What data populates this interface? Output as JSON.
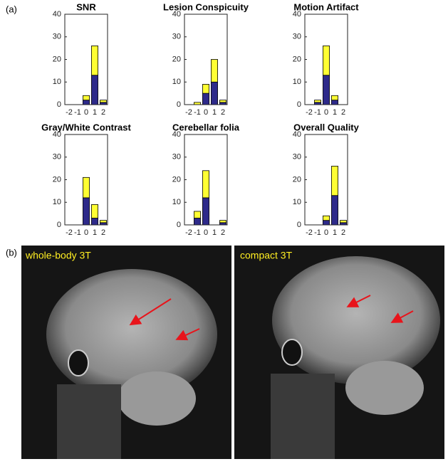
{
  "panel_labels": [
    "(a)",
    "(b)"
  ],
  "chart_data": [
    {
      "type": "stacked_bar",
      "title": "SNR",
      "categories": [
        "-2",
        "-1",
        "0",
        "1",
        "2"
      ],
      "ylim": [
        0,
        40
      ],
      "yticks": [
        0,
        10,
        20,
        30,
        40
      ],
      "series": [
        {
          "color": "#2e2a8a",
          "values": [
            0,
            0,
            2,
            13,
            1
          ]
        },
        {
          "color": "#ffff33",
          "values": [
            0,
            0,
            2,
            13,
            1
          ]
        }
      ]
    },
    {
      "type": "stacked_bar",
      "title": "Lesion Conspicuity",
      "categories": [
        "-2",
        "-1",
        "0",
        "1",
        "2"
      ],
      "ylim": [
        0,
        40
      ],
      "yticks": [
        0,
        10,
        20,
        30,
        40
      ],
      "series": [
        {
          "color": "#2e2a8a",
          "values": [
            0,
            0,
            5,
            10,
            1
          ]
        },
        {
          "color": "#ffff33",
          "values": [
            0,
            1,
            4,
            10,
            1
          ]
        }
      ]
    },
    {
      "type": "stacked_bar",
      "title": "Motion Artifact",
      "categories": [
        "-2",
        "-1",
        "0",
        "1",
        "2"
      ],
      "ylim": [
        0,
        40
      ],
      "yticks": [
        0,
        10,
        20,
        30,
        40
      ],
      "series": [
        {
          "color": "#2e2a8a",
          "values": [
            0,
            1,
            13,
            2,
            0
          ]
        },
        {
          "color": "#ffff33",
          "values": [
            0,
            1,
            13,
            2,
            0
          ]
        }
      ]
    },
    {
      "type": "stacked_bar",
      "title": "Gray/White Contrast",
      "categories": [
        "-2",
        "-1",
        "0",
        "1",
        "2"
      ],
      "ylim": [
        0,
        40
      ],
      "yticks": [
        0,
        10,
        20,
        30,
        40
      ],
      "series": [
        {
          "color": "#2e2a8a",
          "values": [
            0,
            0,
            12,
            3,
            1
          ]
        },
        {
          "color": "#ffff33",
          "values": [
            0,
            0,
            9,
            6,
            1
          ]
        }
      ]
    },
    {
      "type": "stacked_bar",
      "title": "Cerebellar folia",
      "categories": [
        "-2",
        "-1",
        "0",
        "1",
        "2"
      ],
      "ylim": [
        0,
        40
      ],
      "yticks": [
        0,
        10,
        20,
        30,
        40
      ],
      "series": [
        {
          "color": "#2e2a8a",
          "values": [
            0,
            3,
            12,
            0,
            1
          ]
        },
        {
          "color": "#ffff33",
          "values": [
            0,
            3,
            12,
            0,
            1
          ]
        }
      ]
    },
    {
      "type": "stacked_bar",
      "title": "Overall Quality",
      "categories": [
        "-2",
        "-1",
        "0",
        "1",
        "2"
      ],
      "ylim": [
        0,
        40
      ],
      "yticks": [
        0,
        10,
        20,
        30,
        40
      ],
      "series": [
        {
          "color": "#2e2a8a",
          "values": [
            0,
            0,
            2,
            13,
            1
          ]
        },
        {
          "color": "#ffff33",
          "values": [
            0,
            0,
            2,
            13,
            1
          ]
        }
      ]
    }
  ],
  "images": [
    {
      "label": "whole-body 3T"
    },
    {
      "label": "compact 3T"
    }
  ]
}
